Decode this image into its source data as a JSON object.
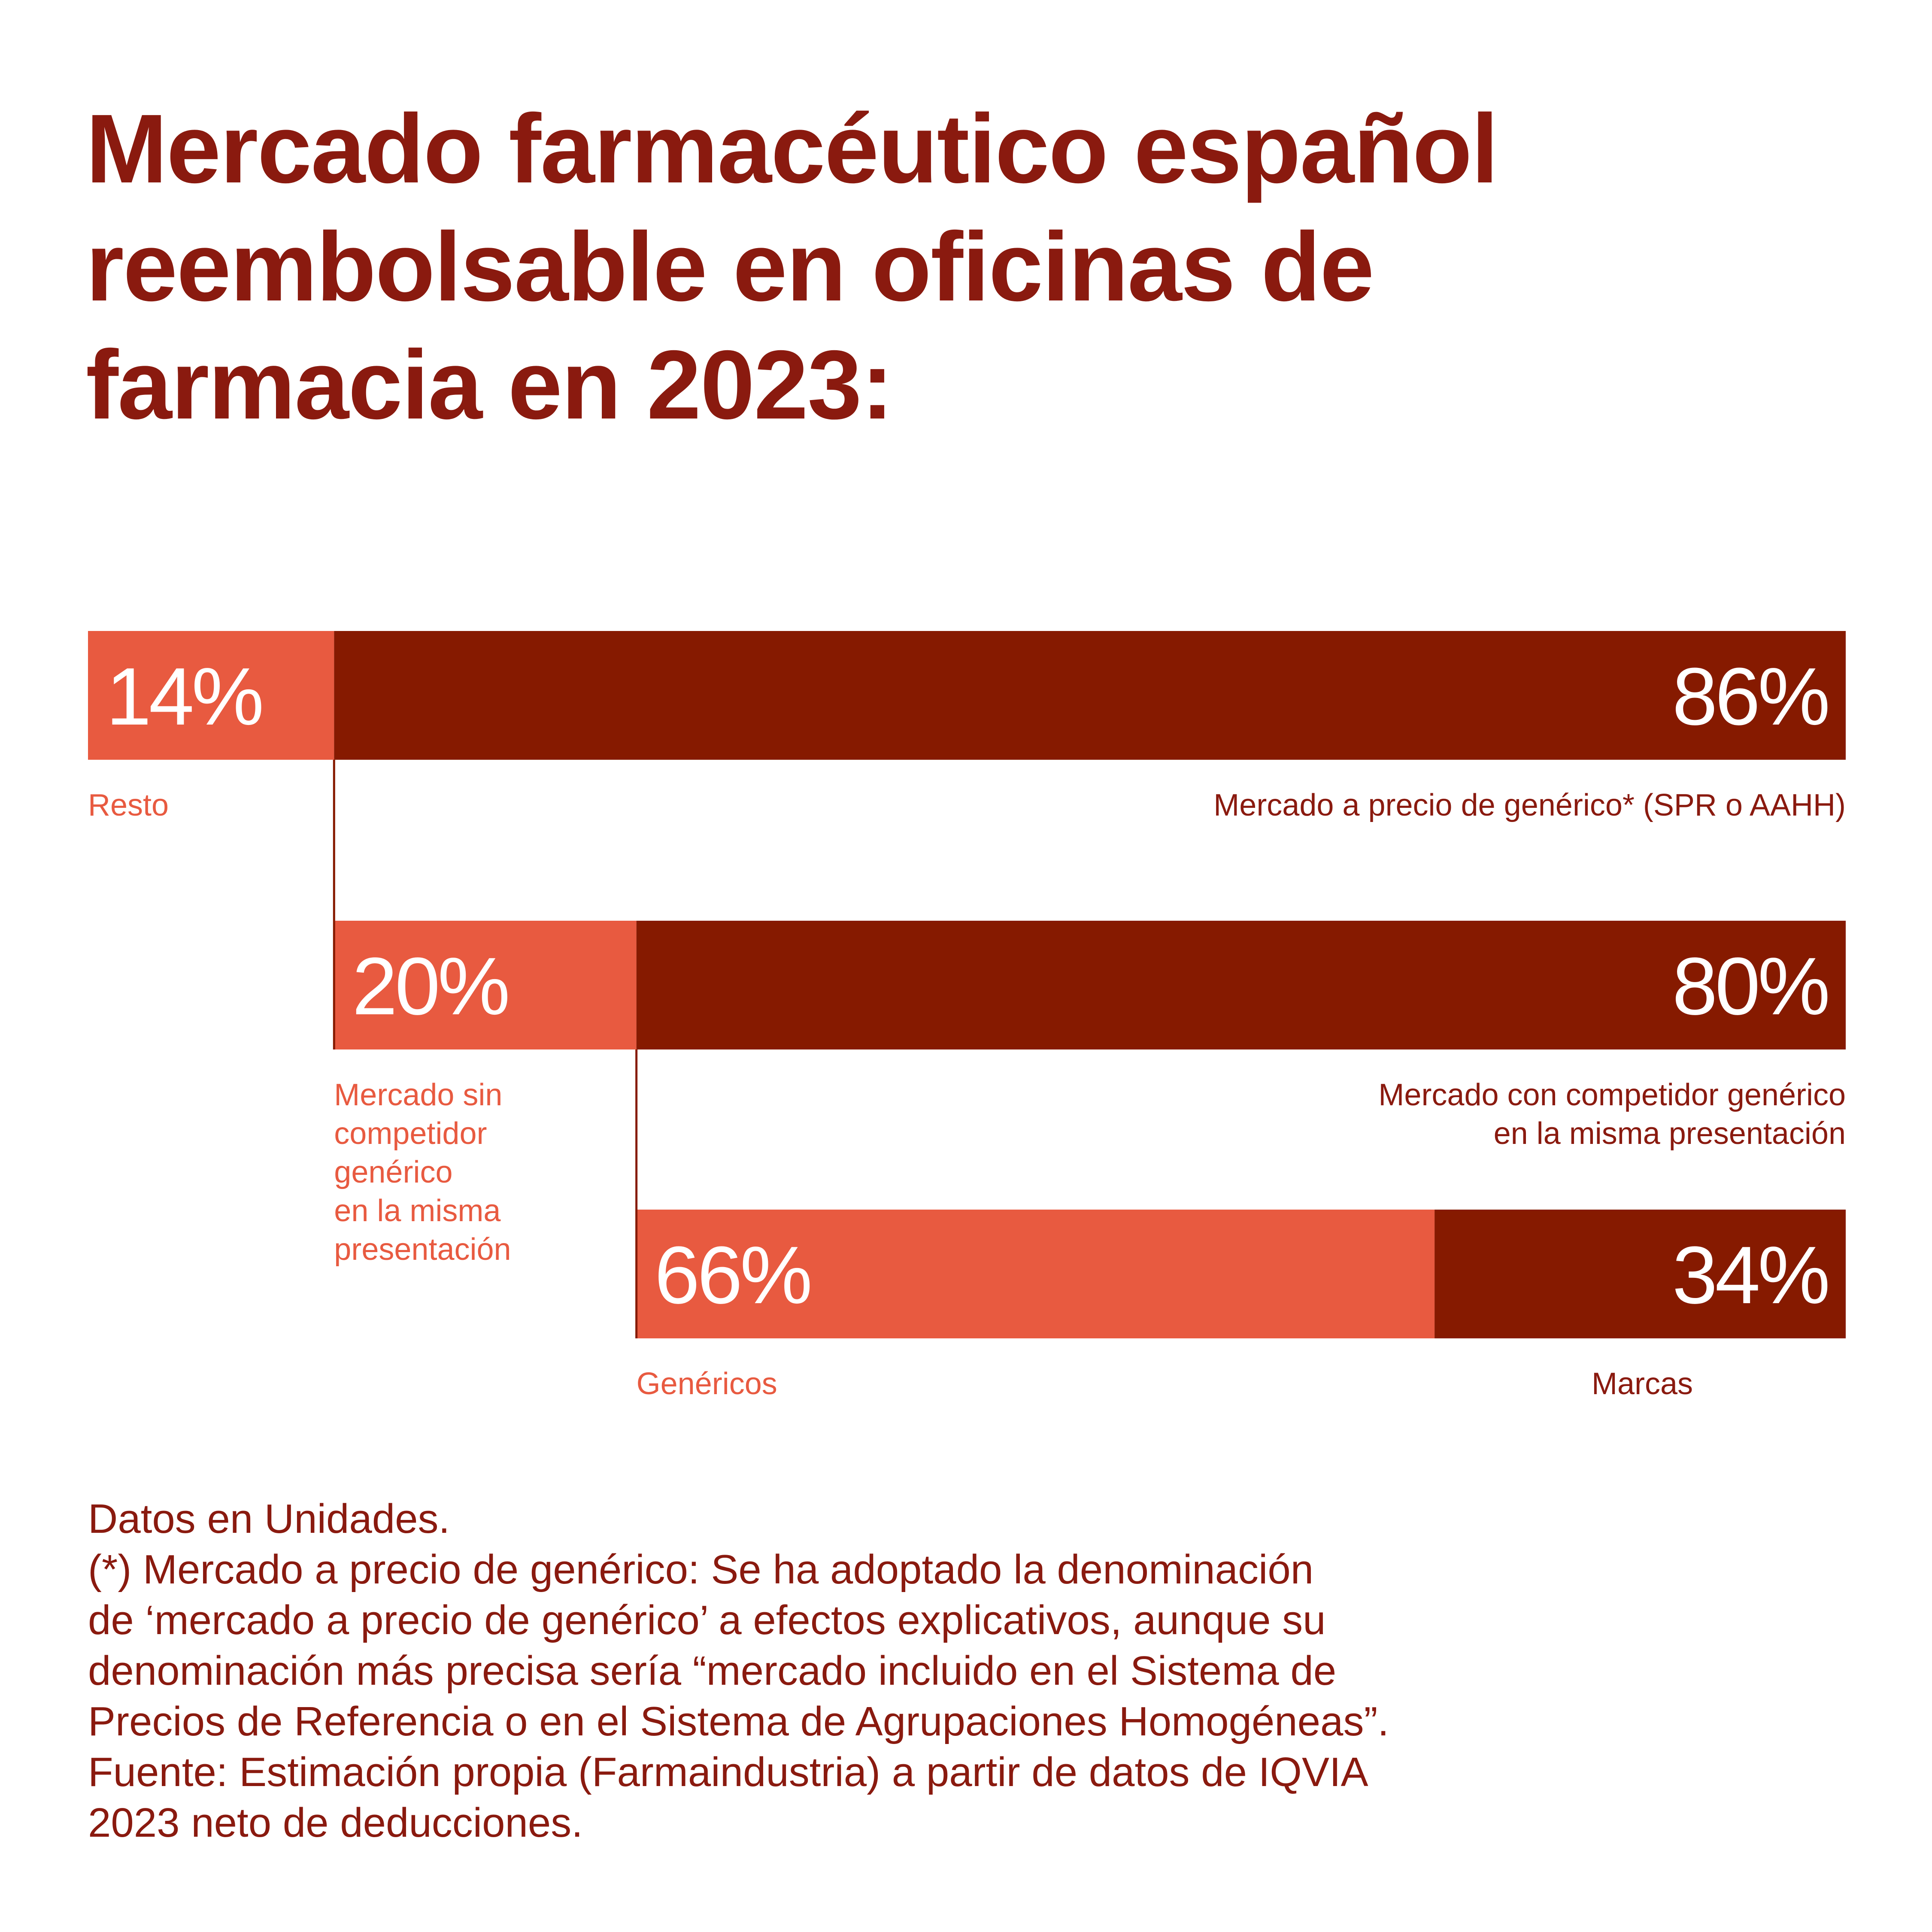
{
  "title_lines": [
    "Mercado farmacéutico español",
    "reembolsable en oficinas de",
    "farmacia en 2023:"
  ],
  "colors": {
    "dark": "#861a00",
    "light": "#e85a40",
    "text_dark": "#8a1a0f"
  },
  "chart_data": {
    "type": "bar",
    "stacked": true,
    "orientation": "horizontal",
    "unit": "%",
    "bars": [
      {
        "segments": [
          {
            "value": 14,
            "label": "14%",
            "name_lines": [
              "Resto"
            ],
            "color": "#e85a40"
          },
          {
            "value": 86,
            "label": "86%",
            "name_lines": [
              "Mercado a precio de genérico* (SPR o AAHH)"
            ],
            "color": "#861a00"
          }
        ]
      },
      {
        "breakdown_of": "Mercado a precio de genérico* (SPR o AAHH)",
        "segments": [
          {
            "value": 20,
            "label": "20%",
            "name_lines": [
              "Mercado sin",
              "competidor",
              "genérico",
              "en la misma",
              "presentación"
            ],
            "color": "#e85a40"
          },
          {
            "value": 80,
            "label": "80%",
            "name_lines": [
              "Mercado con competidor genérico",
              "en la misma presentación"
            ],
            "color": "#861a00"
          }
        ]
      },
      {
        "breakdown_of": "Mercado con competidor genérico en la misma presentación",
        "segments": [
          {
            "value": 66,
            "label": "66%",
            "name_lines": [
              "Genéricos"
            ],
            "color": "#e85a40"
          },
          {
            "value": 34,
            "label": "34%",
            "name_lines": [
              "Marcas"
            ],
            "color": "#861a00"
          }
        ]
      }
    ]
  },
  "footnote_lines": [
    "Datos en Unidades.",
    "(*) Mercado a precio de genérico: Se ha adoptado la denominación",
    "de ‘mercado a precio de genérico’ a efectos explicativos, aunque su",
    "denominación más precisa sería “mercado incluido en el Sistema de",
    "Precios de Referencia o en el Sistema de Agrupaciones Homogéneas”.",
    "Fuente: Estimación propia (Farmaindustria) a partir de datos de IQVIA",
    "2023 neto de deducciones."
  ]
}
